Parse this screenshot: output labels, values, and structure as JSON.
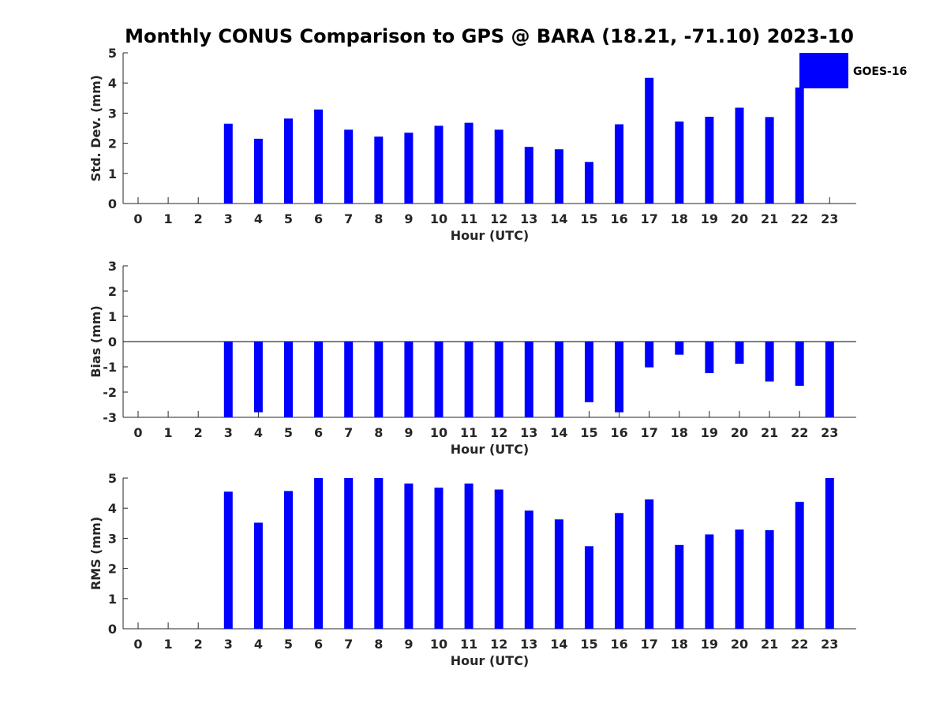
{
  "figure": {
    "title": "Monthly CONUS Comparison to GPS @ BARA (18.21, -71.10) 2023-10",
    "legend": {
      "label": "GOES-16",
      "color": "#0000ff",
      "placement": "top-right"
    }
  },
  "chart_data": [
    {
      "type": "bar",
      "xlabel": "Hour (UTC)",
      "ylabel": "Std. Dev. (mm)",
      "ylim": [
        0,
        5
      ],
      "yticks": [
        0,
        1,
        2,
        3,
        4,
        5
      ],
      "categories": [
        0,
        1,
        2,
        3,
        4,
        5,
        6,
        7,
        8,
        9,
        10,
        11,
        12,
        13,
        14,
        15,
        16,
        17,
        18,
        19,
        20,
        21,
        22,
        23
      ],
      "series": [
        {
          "name": "GOES-16",
          "color": "#0000ff",
          "values": [
            null,
            null,
            null,
            2.65,
            2.15,
            2.82,
            3.12,
            2.45,
            2.22,
            2.35,
            2.58,
            2.68,
            2.45,
            1.88,
            1.8,
            1.38,
            2.63,
            4.17,
            2.72,
            2.88,
            3.18,
            2.87,
            3.85,
            null
          ]
        }
      ]
    },
    {
      "type": "bar",
      "xlabel": "Hour (UTC)",
      "ylabel": "Bias (mm)",
      "ylim": [
        -3,
        3
      ],
      "yticks": [
        -3,
        -2,
        -1,
        0,
        1,
        2,
        3
      ],
      "categories": [
        0,
        1,
        2,
        3,
        4,
        5,
        6,
        7,
        8,
        9,
        10,
        11,
        12,
        13,
        14,
        15,
        16,
        17,
        18,
        19,
        20,
        21,
        22,
        23
      ],
      "series": [
        {
          "name": "GOES-16",
          "color": "#0000ff",
          "values": [
            null,
            null,
            null,
            -3.0,
            -2.8,
            -3.0,
            -3.0,
            -3.0,
            -3.0,
            -3.0,
            -3.0,
            -3.0,
            -3.0,
            -3.0,
            -3.0,
            -2.4,
            -2.8,
            -1.02,
            -0.52,
            -1.25,
            -0.88,
            -1.58,
            -1.75,
            -3.0
          ]
        }
      ]
    },
    {
      "type": "bar",
      "xlabel": "Hour (UTC)",
      "ylabel": "RMS (mm)",
      "ylim": [
        0,
        5
      ],
      "yticks": [
        0,
        1,
        2,
        3,
        4,
        5
      ],
      "categories": [
        0,
        1,
        2,
        3,
        4,
        5,
        6,
        7,
        8,
        9,
        10,
        11,
        12,
        13,
        14,
        15,
        16,
        17,
        18,
        19,
        20,
        21,
        22,
        23
      ],
      "series": [
        {
          "name": "GOES-16",
          "color": "#0000ff",
          "values": [
            null,
            null,
            null,
            4.55,
            3.52,
            4.57,
            5.0,
            5.0,
            5.0,
            4.82,
            4.68,
            4.82,
            4.62,
            3.92,
            3.63,
            2.74,
            3.84,
            4.29,
            2.78,
            3.13,
            3.29,
            3.27,
            4.21,
            5.0
          ]
        }
      ]
    }
  ]
}
